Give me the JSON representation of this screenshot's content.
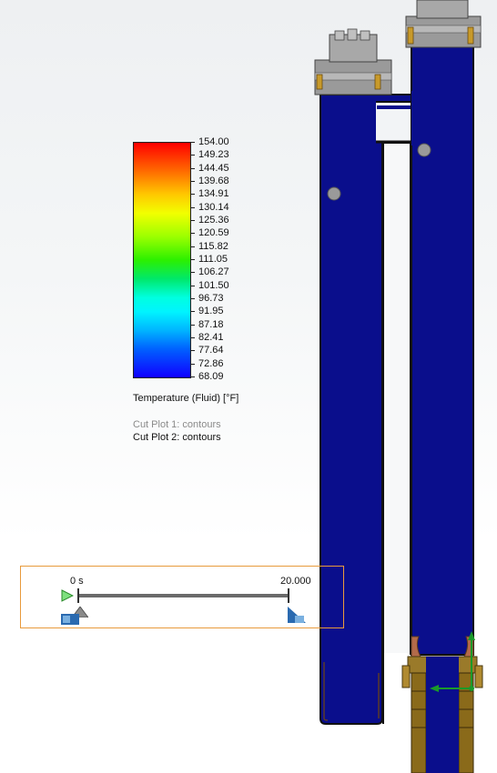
{
  "legend": {
    "title": "Temperature (Fluid) [°F]",
    "unit": "°F",
    "values": [
      "154.00",
      "149.23",
      "144.45",
      "139.68",
      "134.91",
      "130.14",
      "125.36",
      "120.59",
      "115.82",
      "111.05",
      "106.27",
      "101.50",
      "96.73",
      "91.95",
      "87.18",
      "82.41",
      "77.64",
      "72.86",
      "68.09"
    ],
    "max": 154.0,
    "min": 68.09
  },
  "plots": {
    "cut1": "Cut Plot 1: contours",
    "cut2": "Cut Plot 2: contours"
  },
  "timeline": {
    "start_label": "0 s",
    "end_label": "20.000",
    "current_fraction": 0.0
  },
  "colors": {
    "fluid_cold": "#0a0e8c",
    "frame": "#e89a3c",
    "housing": "#9a9a9a",
    "fitting": "#8a6a1a"
  }
}
